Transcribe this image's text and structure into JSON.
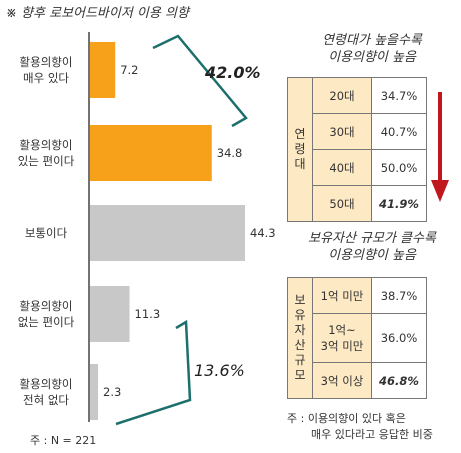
{
  "title": "※ 향후 로보어드바이저 이용 의향",
  "note_n": "주 : N = 221",
  "chart_data": {
    "type": "bar",
    "orientation": "horizontal",
    "categories": [
      "활용의향이\n매우 있다",
      "활용의향이\n있는 편이다",
      "보통이다",
      "활용의향이\n없는 편이다",
      "활용의향이\n전혀 없다"
    ],
    "values": [
      7.2,
      34.8,
      44.3,
      11.3,
      2.3
    ],
    "value_labels": [
      "7.2",
      "34.8",
      "44.3",
      "11.3",
      "2.3"
    ],
    "colors": [
      "#f7a11a",
      "#f7a11a",
      "#c8c8c8",
      "#c8c8c8",
      "#c8c8c8"
    ],
    "xlim": [
      0,
      50
    ],
    "annotations": [
      {
        "text": "42.0%",
        "covers": [
          0,
          1
        ]
      },
      {
        "text": "13.6%",
        "covers": [
          3,
          4
        ]
      }
    ]
  },
  "age_table": {
    "title_line1": "연령대가 높을수록",
    "title_line2": "이용의향이 높음",
    "group_label": "연령대",
    "rows": [
      {
        "label": "20대",
        "value": "34.7%",
        "bold": false
      },
      {
        "label": "30대",
        "value": "40.7%",
        "bold": false
      },
      {
        "label": "40대",
        "value": "50.0%",
        "bold": false
      },
      {
        "label": "50대",
        "value": "41.9%",
        "bold": true
      }
    ],
    "arrow_color": "#c0161d"
  },
  "asset_table": {
    "title_line1": "보유자산 규모가 클수록",
    "title_line2": "이용의향이 높음",
    "group_label": "보유자산규모",
    "rows": [
      {
        "label": "1억 미만",
        "value": "38.7%",
        "bold": false
      },
      {
        "label": "1억~\n3억 미만",
        "value": "36.0%",
        "bold": false
      },
      {
        "label": "3억 이상",
        "value": "46.8%",
        "bold": true
      }
    ]
  },
  "footnote_line1": "주 : 이용의향이 있다 혹은",
  "footnote_line2": "매우 있다라고 응답한 비중"
}
